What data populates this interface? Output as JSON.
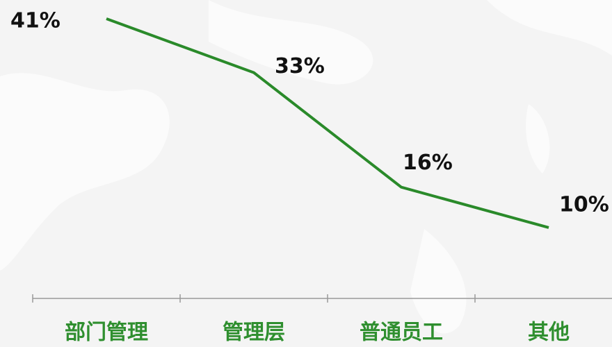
{
  "chart_data": {
    "type": "line",
    "categories": [
      "部门管理",
      "管理层",
      "普通员工",
      "其他"
    ],
    "values": [
      41,
      33,
      16,
      10
    ],
    "value_labels": [
      "41%",
      "33%",
      "16%",
      "10%"
    ],
    "color": "#2a8a2a"
  }
}
